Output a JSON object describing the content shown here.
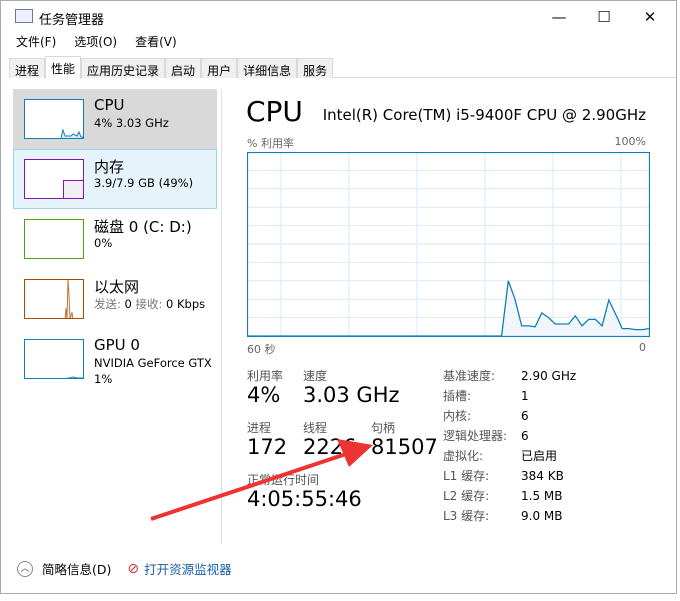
{
  "window": {
    "title": "任务管理器",
    "minimize": "—",
    "maximize": "☐",
    "close": "✕"
  },
  "menu": [
    "文件(F)",
    "选项(O)",
    "查看(V)"
  ],
  "tabs": [
    "进程",
    "性能",
    "应用历史记录",
    "启动",
    "用户",
    "详细信息",
    "服务"
  ],
  "active_tab": "性能",
  "sidebar": [
    {
      "name": "CPU",
      "sub": "4% 3.03 GHz",
      "color": "#117dbb"
    },
    {
      "name": "内存",
      "sub": "3.9/7.9 GB (49%)",
      "color": "#8b12ae"
    },
    {
      "name": "磁盘 0 (C: D:)",
      "sub": "0%",
      "color": "#4da60c"
    },
    {
      "name": "以太网",
      "sub_send_label": "发送:",
      "sub_send": "0",
      "sub_recv_label": "接收:",
      "sub_recv": "0 Kbps",
      "color": "#a74f01"
    },
    {
      "name": "GPU 0",
      "sub": "NVIDIA GeForce GTX",
      "sub2": "1%",
      "color": "#117dbb"
    }
  ],
  "main": {
    "title": "CPU",
    "model": "Intel(R) Core(TM) i5-9400F CPU @ 2.90GHz",
    "graph_ylabel": "% 利用率",
    "graph_ymax": "100%",
    "graph_xleft": "60 秒",
    "graph_xright": "0",
    "cpu_history": [
      0,
      0,
      0,
      0,
      0,
      0,
      0,
      0,
      0,
      0,
      0,
      0,
      0,
      0,
      0,
      0,
      0,
      0,
      0,
      0,
      0,
      0,
      0,
      0,
      0,
      0,
      0,
      0,
      0,
      0,
      0,
      0,
      0,
      0,
      0,
      0,
      0,
      0,
      0,
      30,
      20,
      5.5,
      5.5,
      5,
      12.5,
      10,
      6.5,
      6.5,
      6.5,
      11,
      5.5,
      9,
      9,
      5.5,
      19.5,
      12,
      4,
      4,
      3.5,
      3.5,
      4
    ],
    "stats": {
      "util_label": "利用率",
      "util": "4%",
      "speed_label": "速度",
      "speed": "3.03 GHz",
      "proc_label": "进程",
      "proc": "172",
      "thread_label": "线程",
      "thread": "2226",
      "handle_label": "句柄",
      "handle": "81507",
      "uptime_label": "正常运行时间",
      "uptime": "4:05:55:46"
    },
    "specs": [
      {
        "k": "基准速度:",
        "v": "2.90 GHz"
      },
      {
        "k": "插槽:",
        "v": "1"
      },
      {
        "k": "内核:",
        "v": "6"
      },
      {
        "k": "逻辑处理器:",
        "v": "6"
      },
      {
        "k": "虚拟化:",
        "v": "已启用"
      },
      {
        "k": "L1 缓存:",
        "v": "384 KB"
      },
      {
        "k": "L2 缓存:",
        "v": "1.5 MB"
      },
      {
        "k": "L3 缓存:",
        "v": "9.0 MB"
      }
    ]
  },
  "footer": {
    "brief": "简略信息(D)",
    "monitor": "打开资源监视器"
  },
  "colors": {
    "cpu": "#117dbb",
    "arrow": "#ee3333"
  }
}
